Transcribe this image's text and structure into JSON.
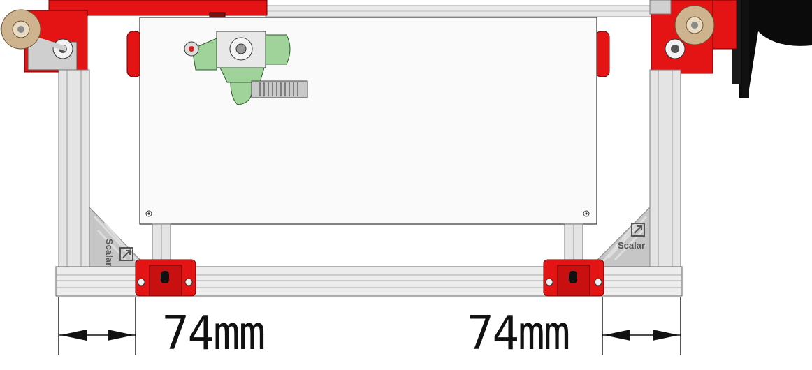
{
  "dimensions": {
    "left_label": "74mm",
    "right_label": "74mm"
  },
  "brackets": {
    "left_text": "Scalar",
    "right_text": "Scalar"
  },
  "colors": {
    "frame_red": "#e51414",
    "aluminum": "#d4d4d4",
    "extruder_green": "#9fd39a",
    "bed_fill": "#fafafa",
    "dim_line": "#111111"
  },
  "icons": [
    "scalar-logo-icon",
    "arrow-left-icon",
    "arrow-right-icon"
  ]
}
